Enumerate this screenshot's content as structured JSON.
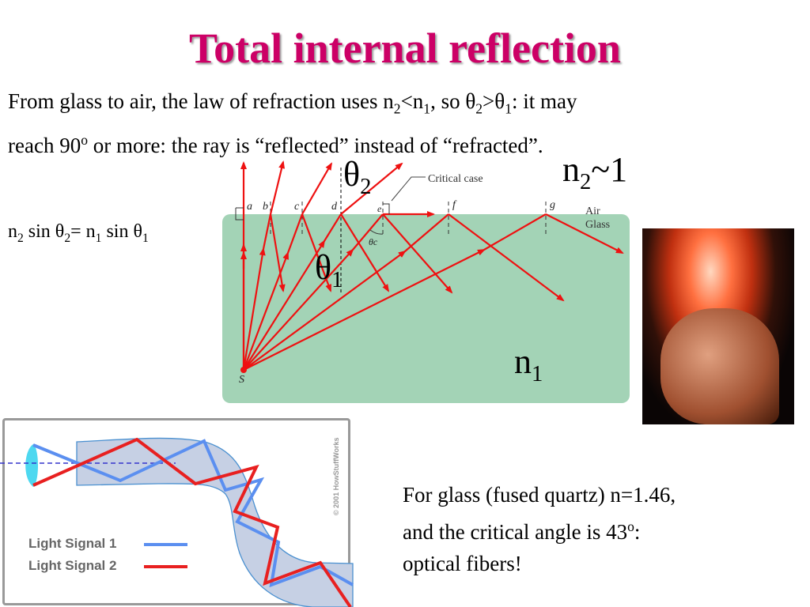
{
  "title": "Total internal reflection",
  "intro": {
    "line1_a": "From glass to air, the law of refraction uses n",
    "line1_sub1": "2",
    "line1_b": "<n",
    "line1_sub2": "1",
    "line1_c": ", so θ",
    "line1_sub3": "2",
    "line1_d": ">θ",
    "line1_sub4": "1",
    "line1_e": ": it may",
    "line2_a": "reach 90",
    "line2_sup": "o",
    "line2_b": " or more: the ray is “reflected” instead of “refracted”."
  },
  "equation": {
    "a": "n",
    "s1": "2",
    "b": " sin θ",
    "s2": "2",
    "c": "= n",
    "s3": "1",
    "d": " sin θ",
    "s4": "1"
  },
  "diagram": {
    "theta2": "θ",
    "theta2_sub": "2",
    "theta1": "θ",
    "theta1_sub": "1",
    "n2": "n",
    "n2_sub": "2",
    "n2_rest": "~1",
    "n1": "n",
    "n1_sub": "1",
    "critical_case": "Critical case",
    "air": "Air",
    "glass": "Glass",
    "theta_c": "θc",
    "points": [
      "a",
      "b",
      "c",
      "d",
      "e",
      "f",
      "g"
    ],
    "source": "S",
    "ray_color": "#ee1111",
    "glass_color": "#a3d3b6"
  },
  "fiber_figure": {
    "legend": [
      {
        "label": "Light Signal 1",
        "color": "#5b8ff0"
      },
      {
        "label": "Light Signal 2",
        "color": "#e82020"
      }
    ],
    "copyright": "© 2001 HowStuffWorks"
  },
  "conclusion": {
    "line1": "For glass (fused quartz) n=1.46,",
    "line2_a": "and the critical angle is 43",
    "line2_sup": "o",
    "line2_b": ":",
    "line3": "optical fibers!"
  }
}
